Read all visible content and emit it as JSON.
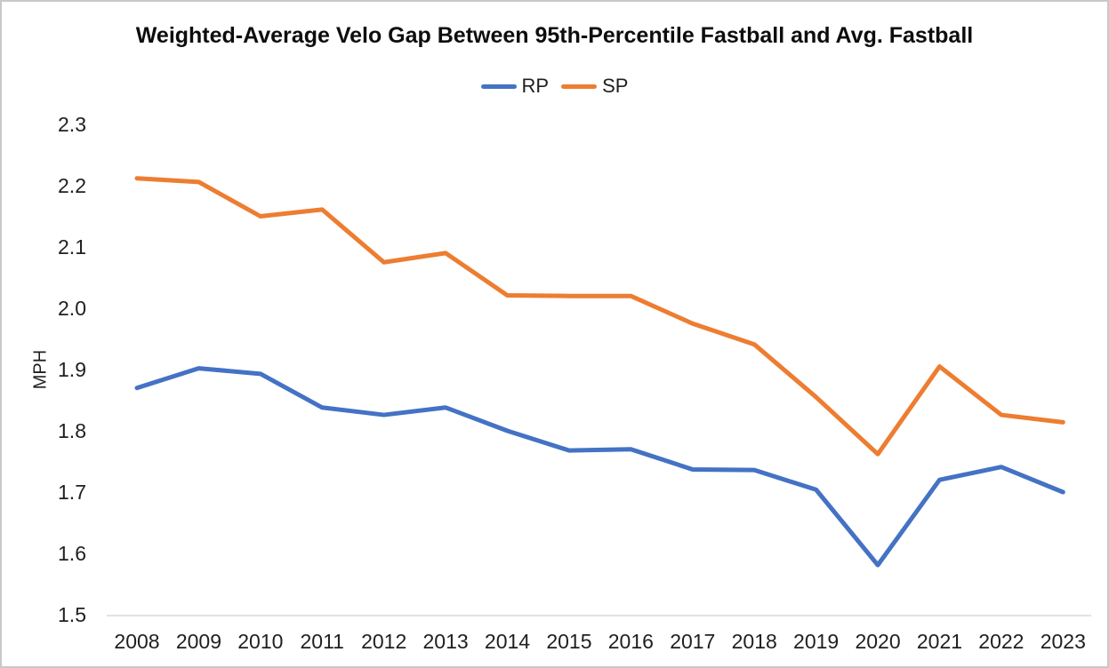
{
  "window": {
    "background": "#ffffff",
    "border_color": "#c8c8c8"
  },
  "chart_data": {
    "type": "line",
    "title": "Weighted-Average Velo Gap Between 95th-Percentile Fastball and Avg. Fastball",
    "ylabel": "MPH",
    "xlabel": "",
    "ylim": [
      1.5,
      2.3
    ],
    "ytick_step": 0.1,
    "grid": false,
    "legend_position": "top-center",
    "axis_color": "#D9D9D9",
    "text_color": "#1f1f1f",
    "categories": [
      "2008",
      "2009",
      "2010",
      "2011",
      "2012",
      "2013",
      "2014",
      "2015",
      "2016",
      "2017",
      "2018",
      "2019",
      "2020",
      "2021",
      "2022",
      "2023"
    ],
    "series": [
      {
        "name": "RP",
        "color": "#4472C4",
        "values": [
          1.87,
          1.902,
          1.893,
          1.838,
          1.826,
          1.838,
          1.8,
          1.768,
          1.77,
          1.737,
          1.736,
          1.704,
          1.581,
          1.72,
          1.741,
          1.7
        ]
      },
      {
        "name": "SP",
        "color": "#ED7D31",
        "values": [
          2.212,
          2.206,
          2.15,
          2.161,
          2.075,
          2.09,
          2.021,
          2.02,
          2.02,
          1.975,
          1.941,
          1.855,
          1.762,
          1.905,
          1.826,
          1.814
        ]
      }
    ]
  }
}
